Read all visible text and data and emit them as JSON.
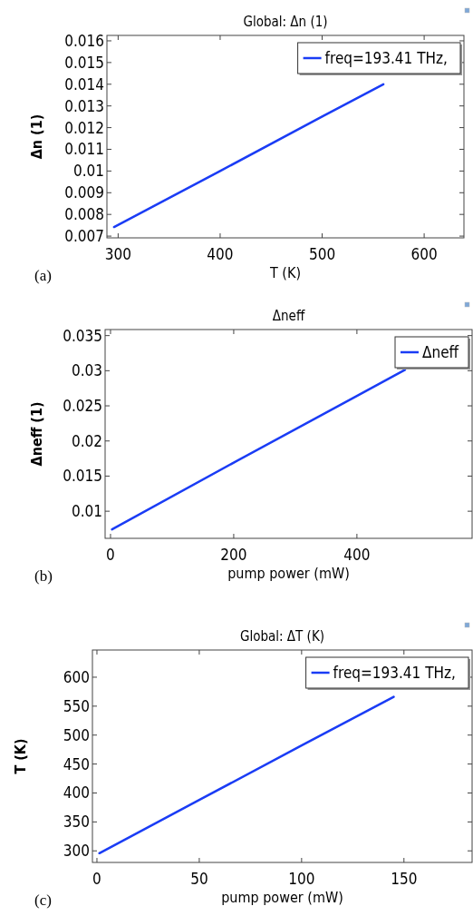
{
  "chart_data": [
    {
      "type": "line",
      "title": "Global: Δn (1)",
      "xlabel": "T (K)",
      "ylabel": "Δn (1)",
      "annotations": [
        "(a)"
      ],
      "x": [
        296,
        400,
        500,
        560
      ],
      "series": [
        {
          "name": "freq=193.41 THz, ",
          "color": "#1a3cf5",
          "values": [
            0.00742,
            0.01,
            0.01251,
            0.014
          ]
        }
      ],
      "xlim": [
        289,
        639
      ],
      "xticks": [
        300,
        400,
        500,
        600
      ],
      "ylim": [
        0.00692,
        0.01625
      ],
      "yticks": [
        0.007,
        0.008,
        0.009,
        0.01,
        0.011,
        0.012,
        0.013,
        0.014,
        0.015,
        0.016
      ],
      "legend": "top right",
      "grid": false,
      "line_style": "solid",
      "marker": "none"
    },
    {
      "type": "line",
      "title": "Δneff",
      "xlabel": "pump power (mW)",
      "ylabel": "Δneff (1)",
      "annotations": [
        "(b)"
      ],
      "x": [
        2.4,
        200,
        400,
        478
      ],
      "series": [
        {
          "name": "Δneff",
          "color": "#1a3cf5",
          "values": [
            0.00742,
            0.01692,
            0.02642,
            0.03012
          ]
        }
      ],
      "xlim": [
        -8.8,
        587
      ],
      "xticks": [
        0,
        200,
        400
      ],
      "ylim": [
        0.00614,
        0.03586
      ],
      "yticks": [
        0.01,
        0.015,
        0.02,
        0.025,
        0.03,
        0.035
      ],
      "legend": "top right",
      "grid": false,
      "line_style": "solid",
      "marker": "none"
    },
    {
      "type": "line",
      "title": "Global: ΔT (K)",
      "xlabel": "pump power (mW)",
      "ylabel": "T (K)",
      "annotations": [
        "(c)"
      ],
      "x": [
        1.2,
        50,
        100,
        145
      ],
      "series": [
        {
          "name": "freq=193.41 THz, ",
          "color": "#1a3cf5",
          "values": [
            296,
            388,
            482,
            566
          ]
        }
      ],
      "xlim": [
        -2.2,
        183.3
      ],
      "xticks": [
        0,
        50,
        100,
        150
      ],
      "ylim": [
        280,
        647
      ],
      "yticks": [
        300,
        350,
        400,
        450,
        500,
        550,
        600
      ],
      "legend": "top right",
      "grid": false,
      "line_style": "solid",
      "marker": "none"
    }
  ]
}
